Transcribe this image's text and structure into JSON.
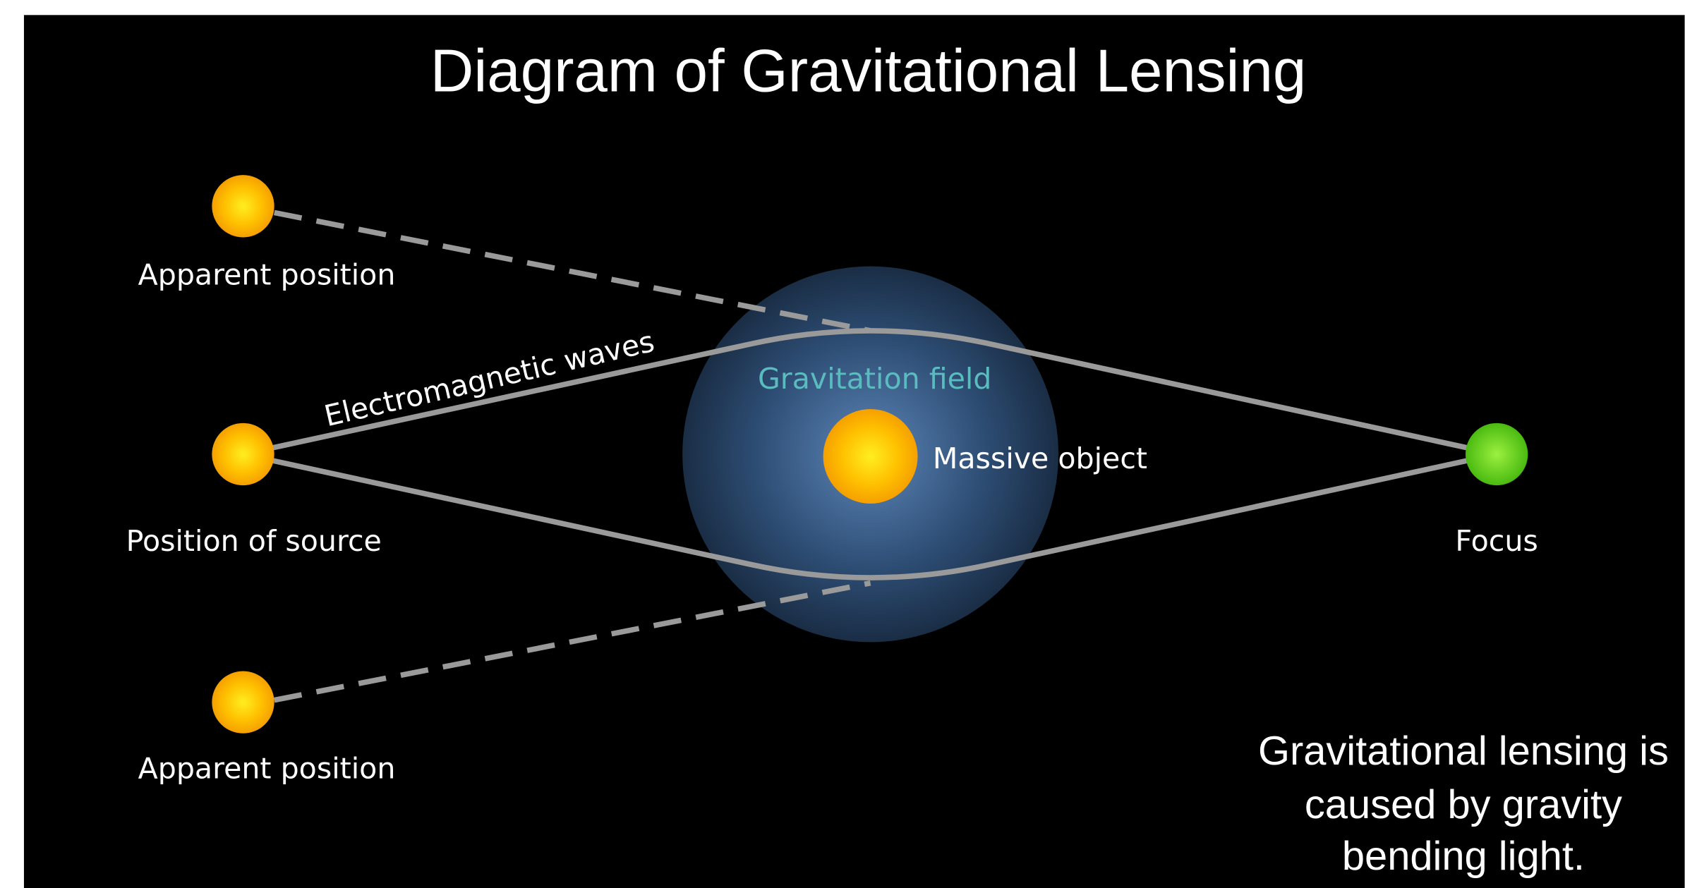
{
  "title": "Diagram of Gravitational Lensing",
  "labels": {
    "apparent_top": "Apparent position",
    "source": "Position of source",
    "apparent_bottom": "Apparent position",
    "waves": "Electromagnetic waves",
    "field": "Gravitation field",
    "massive": "Massive object",
    "focus": "Focus"
  },
  "caption": [
    "Gravitational lensing is",
    "caused by gravity",
    "bending light."
  ]
}
